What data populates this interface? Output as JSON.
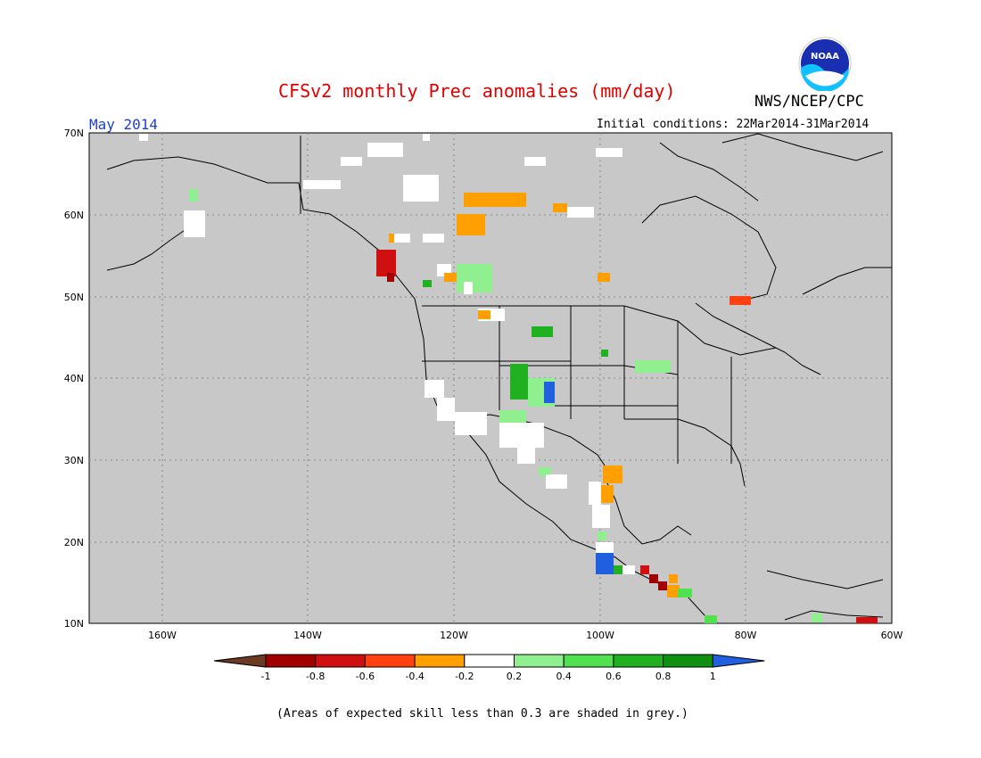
{
  "header": {
    "title": "CFSv2 monthly Prec anomalies (mm/day)",
    "organization": "NWS/NCEP/CPC",
    "period": "May 2014",
    "initial_conditions": "Initial conditions: 22Mar2014-31Mar2014"
  },
  "logo": {
    "icon": "noaa-logo",
    "text": "NOAA"
  },
  "map": {
    "region": "North America",
    "background_color": "#c8c8c8",
    "lat_labels": [
      "70N",
      "60N",
      "50N",
      "40N",
      "30N",
      "20N",
      "10N"
    ],
    "lon_labels": [
      "160W",
      "140W",
      "120W",
      "100W",
      "80W",
      "60W"
    ],
    "lat_range": [
      10,
      70
    ],
    "lon_range": [
      -170,
      -60
    ]
  },
  "colorbar": {
    "ticks": [
      "-1",
      "-0.8",
      "-0.6",
      "-0.4",
      "-0.2",
      "0.2",
      "0.4",
      "0.6",
      "0.8",
      "1"
    ],
    "colors": [
      "#6b3a22",
      "#a00000",
      "#d01010",
      "#ff4010",
      "#ffa000",
      "#ffffff",
      "#90f090",
      "#50e050",
      "#20b020",
      "#109010",
      "#2060e0"
    ]
  },
  "footnote": "(Areas of expected skill less than 0.3 are shaded in grey.)"
}
